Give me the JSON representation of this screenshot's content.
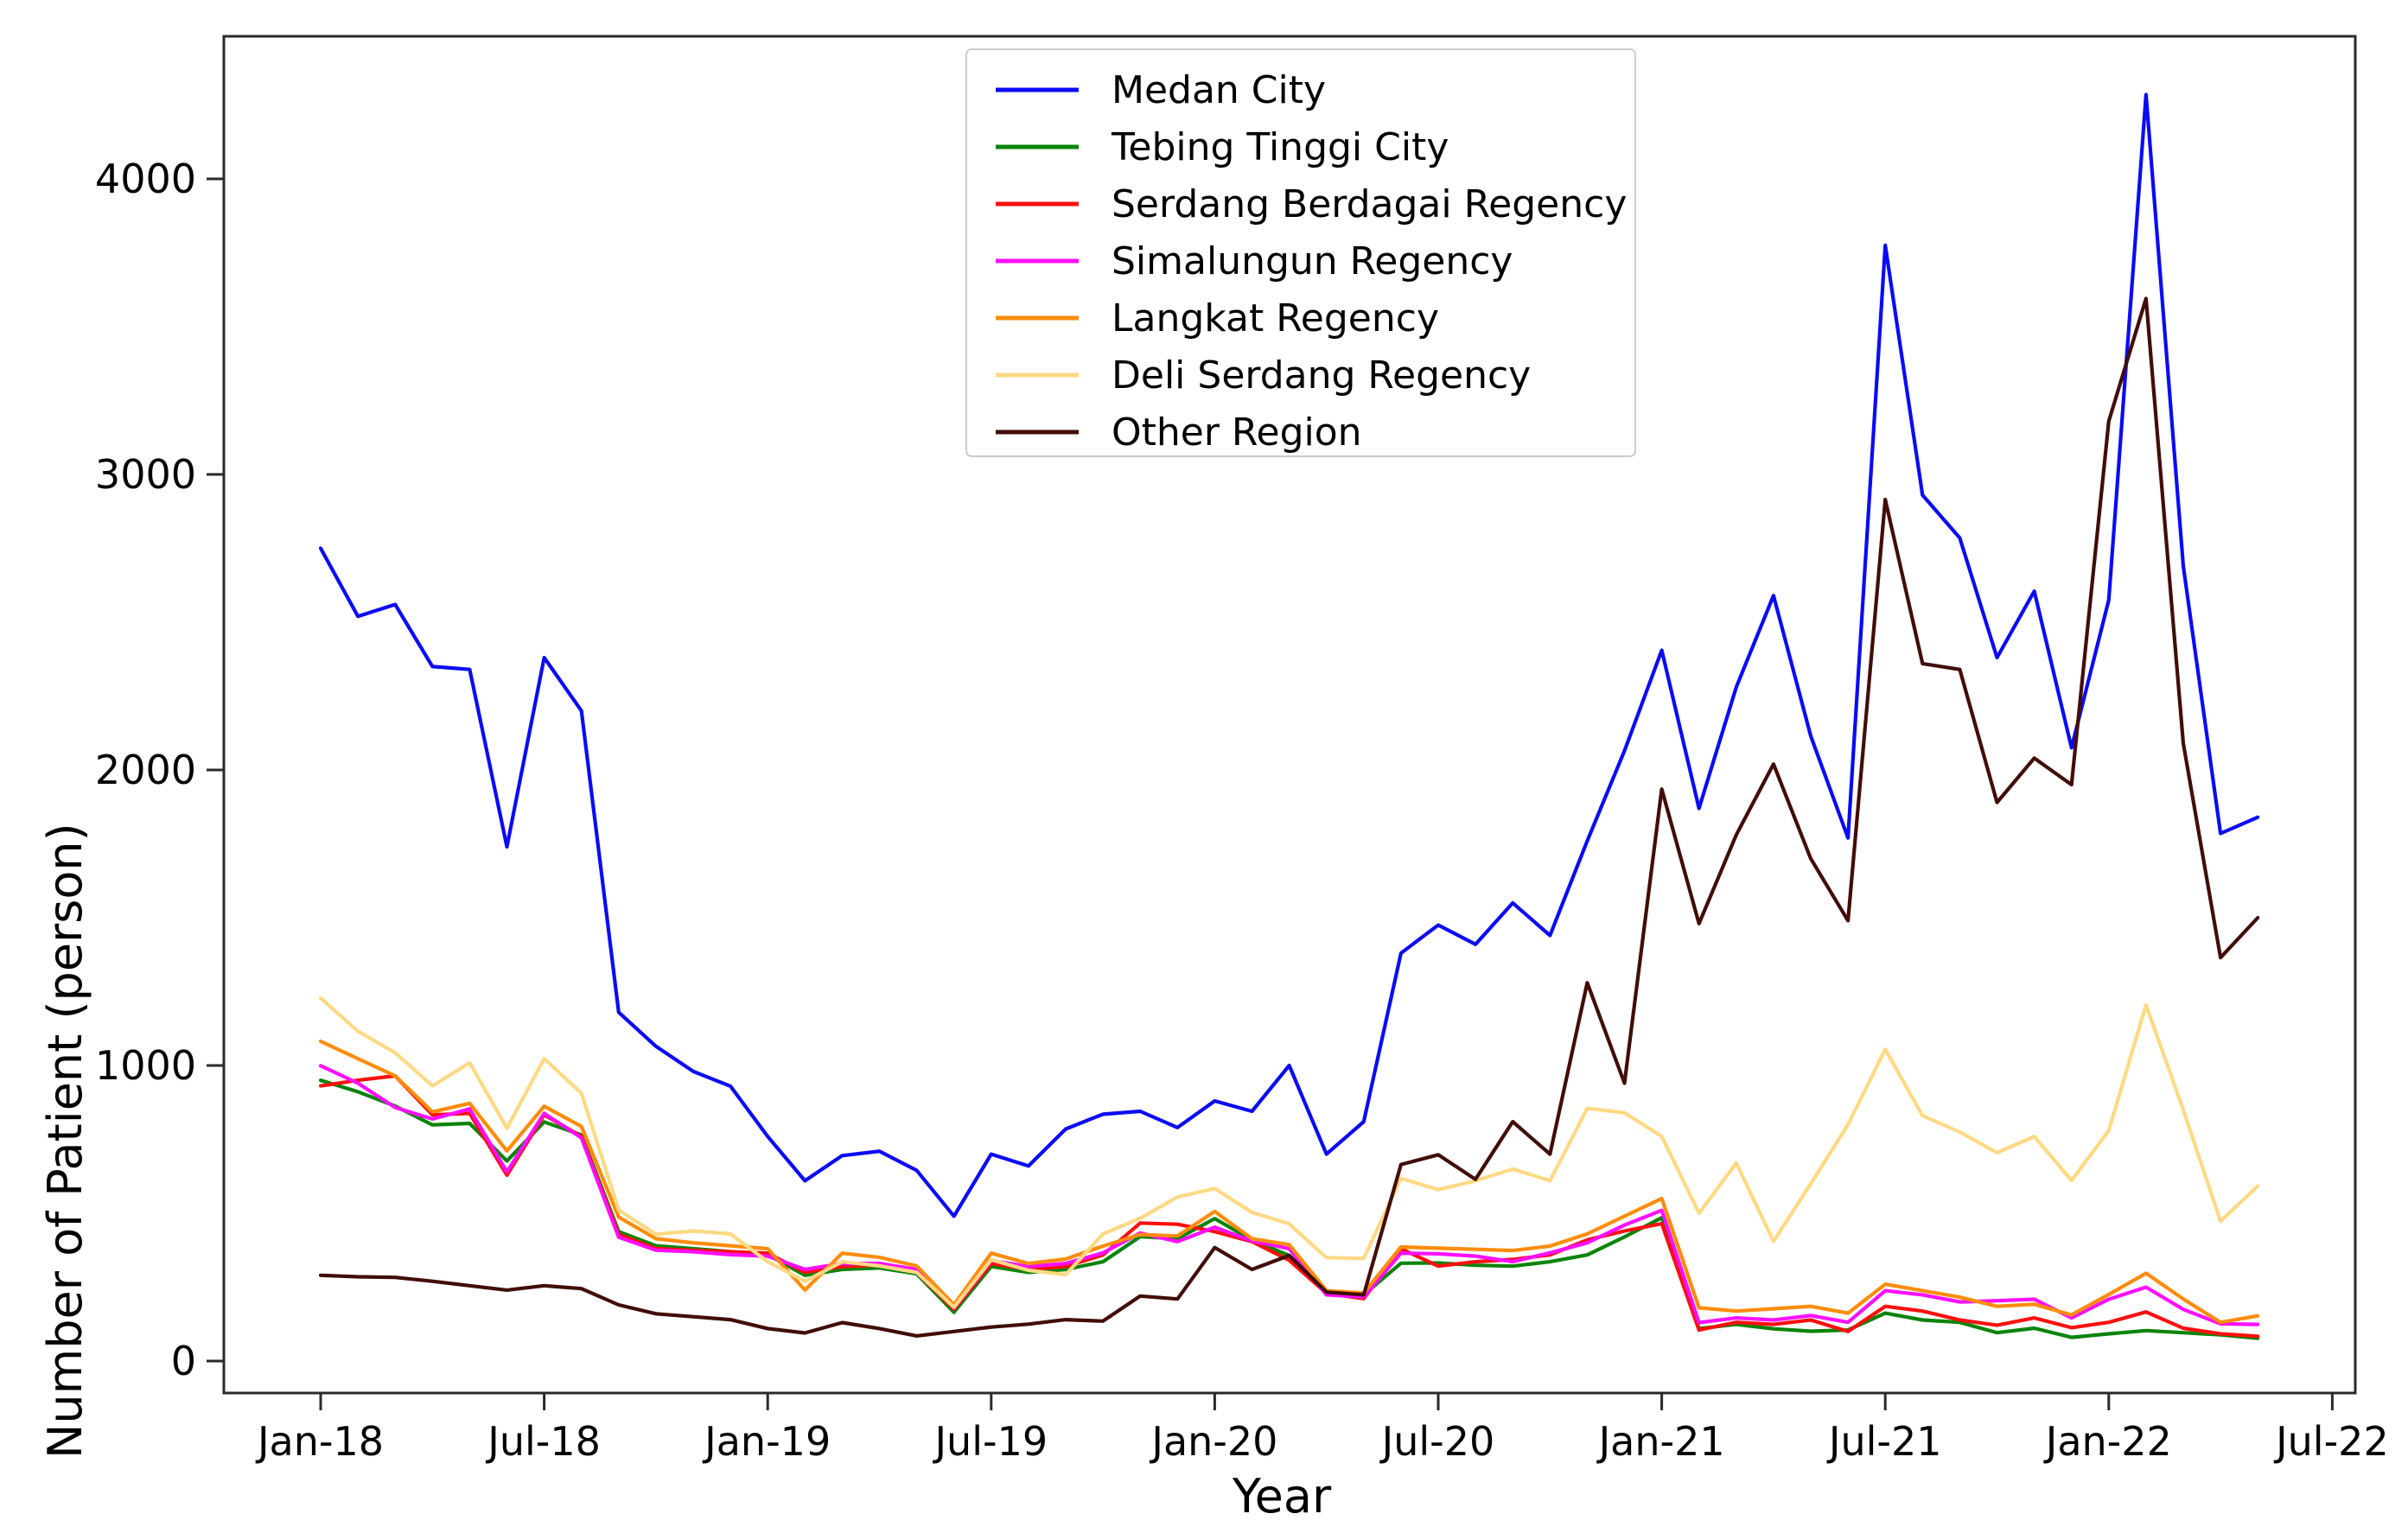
{
  "figure": {
    "background": "#ffffff",
    "frame_color": "#2a2a2a",
    "text_color": "#000000"
  },
  "chart_data": {
    "type": "line",
    "title": "",
    "xlabel": "Year",
    "ylabel": "Number of Patient (person)",
    "grid": false,
    "legend_position": "upper center-left inside plot",
    "y_ticks": [
      0,
      1000,
      2000,
      3000,
      4000
    ],
    "ylim": [
      -110,
      4480
    ],
    "x_tick_labels": [
      "Jan-18",
      "Jul-18",
      "Jan-19",
      "Jul-19",
      "Jan-20",
      "Jul-20",
      "Jan-21",
      "Jul-21",
      "Jan-22",
      "Jul-22"
    ],
    "x": [
      "Jan-18",
      "Feb-18",
      "Mar-18",
      "Apr-18",
      "May-18",
      "Jun-18",
      "Jul-18",
      "Aug-18",
      "Sep-18",
      "Oct-18",
      "Nov-18",
      "Dec-18",
      "Jan-19",
      "Feb-19",
      "Mar-19",
      "Apr-19",
      "May-19",
      "Jun-19",
      "Jul-19",
      "Aug-19",
      "Sep-19",
      "Oct-19",
      "Nov-19",
      "Dec-19",
      "Jan-20",
      "Feb-20",
      "Mar-20",
      "Apr-20",
      "May-20",
      "Jun-20",
      "Jul-20",
      "Aug-20",
      "Sep-20",
      "Oct-20",
      "Nov-20",
      "Dec-20",
      "Jan-21",
      "Feb-21",
      "Mar-21",
      "Apr-21",
      "May-21",
      "Jun-21",
      "Jul-21",
      "Aug-21",
      "Sep-21",
      "Oct-21",
      "Nov-21",
      "Dec-21",
      "Jan-22",
      "Feb-22",
      "Mar-22",
      "Apr-22",
      "May-22"
    ],
    "series": [
      {
        "name": "Medan City",
        "color": "#0b0bf5",
        "values": [
          2750,
          2520,
          2560,
          2350,
          2340,
          1740,
          2380,
          2200,
          1180,
          1065,
          980,
          930,
          760,
          610,
          695,
          710,
          645,
          490,
          700,
          660,
          785,
          835,
          845,
          790,
          880,
          845,
          1000,
          700,
          810,
          1380,
          1475,
          1410,
          1550,
          1440,
          1760,
          2065,
          2405,
          1870,
          2280,
          2590,
          2115,
          1770,
          3775,
          2930,
          2785,
          2380,
          2605,
          2075,
          2575,
          4285,
          2690,
          1785,
          1840
        ]
      },
      {
        "name": "Tebing Tinggi City",
        "color": "#0a840a",
        "values": [
          950,
          911,
          863,
          799,
          804,
          677,
          809,
          765,
          438,
          390,
          380,
          370,
          360,
          290,
          310,
          315,
          295,
          165,
          320,
          300,
          310,
          336,
          421,
          414,
          482,
          409,
          357,
          233,
          224,
          331,
          332,
          324,
          321,
          336,
          359,
          420,
          485,
          110,
          124,
          109,
          101,
          105,
          162,
          139,
          131,
          96,
          111,
          80,
          92,
          103,
          96,
          89,
          77
        ]
      },
      {
        "name": "Serdang Berdagai Regency",
        "color": "#fb0f0f",
        "values": [
          931,
          950,
          965,
          833,
          838,
          629,
          833,
          760,
          429,
          380,
          375,
          370,
          365,
          300,
          320,
          325,
          300,
          175,
          330,
          310,
          320,
          359,
          467,
          463,
          438,
          404,
          341,
          229,
          211,
          380,
          321,
          336,
          344,
          359,
          410,
          440,
          465,
          105,
          131,
          124,
          139,
          100,
          185,
          169,
          139,
          121,
          146,
          113,
          131,
          166,
          111,
          92,
          84
        ]
      },
      {
        "name": "Simalungun Regency",
        "color": "#ff0fff",
        "values": [
          999,
          940,
          858,
          819,
          853,
          640,
          838,
          755,
          419,
          375,
          370,
          360,
          355,
          310,
          330,
          330,
          310,
          180,
          340,
          320,
          330,
          366,
          433,
          404,
          453,
          406,
          380,
          224,
          217,
          365,
          363,
          355,
          336,
          366,
          400,
          460,
          510,
          130,
          146,
          139,
          154,
          131,
          238,
          224,
          200,
          204,
          209,
          146,
          209,
          250,
          175,
          126,
          124
        ]
      },
      {
        "name": "Langkat Regency",
        "color": "#ff8c0a",
        "values": [
          1082,
          1023,
          965,
          843,
          872,
          711,
          862,
          794,
          487,
          414,
          400,
          390,
          380,
          240,
          365,
          351,
          322,
          190,
          365,
          330,
          345,
          389,
          428,
          423,
          506,
          414,
          394,
          238,
          230,
          386,
          382,
          378,
          374,
          389,
          430,
          490,
          550,
          180,
          169,
          177,
          185,
          162,
          260,
          238,
          216,
          185,
          192,
          156,
          225,
          297,
          210,
          131,
          153
        ]
      },
      {
        "name": "Deli Serdang Regency",
        "color": "#ffd983",
        "values": [
          1228,
          1116,
          1043,
          931,
          1009,
          788,
          1023,
          906,
          511,
          429,
          440,
          430,
          336,
          270,
          336,
          322,
          300,
          182,
          343,
          307,
          292,
          430,
          483,
          555,
          584,
          503,
          464,
          350,
          347,
          618,
          580,
          610,
          650,
          610,
          855,
          840,
          760,
          500,
          670,
          405,
          600,
          800,
          1055,
          830,
          775,
          705,
          760,
          611,
          780,
          1205,
          850,
          473,
          592
        ]
      },
      {
        "name": "Other Region",
        "color": "#420d08",
        "values": [
          290,
          285,
          283,
          270,
          255,
          240,
          255,
          245,
          190,
          160,
          150,
          140,
          110,
          95,
          130,
          110,
          85,
          100,
          115,
          125,
          140,
          135,
          220,
          210,
          384,
          310,
          357,
          233,
          224,
          665,
          698,
          615,
          810,
          700,
          1280,
          940,
          1935,
          1480,
          1780,
          2020,
          1700,
          1490,
          2915,
          2360,
          2340,
          1890,
          2040,
          1950,
          3180,
          3595,
          2090,
          1365,
          1500
        ]
      }
    ]
  }
}
